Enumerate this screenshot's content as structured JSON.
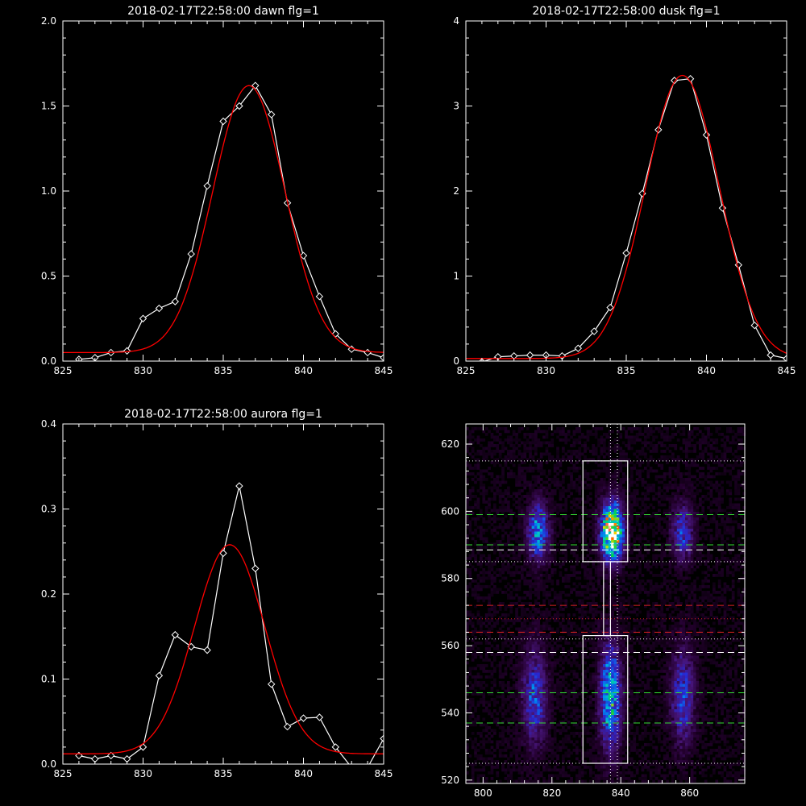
{
  "chart_data": [
    {
      "id": "dawn",
      "type": "line",
      "title": "2018-02-17T22:58:00 dawn flg=1",
      "xlim": [
        825,
        845
      ],
      "ylim": [
        0,
        2.0
      ],
      "xticks": [
        825,
        830,
        835,
        840,
        845
      ],
      "xtick_labels": [
        "825",
        "830",
        "835",
        "840",
        "845"
      ],
      "yticks": [
        0,
        0.5,
        1.0,
        1.5,
        2.0
      ],
      "ytick_labels": [
        "0.0",
        "0.5",
        "1.0",
        "1.5",
        "2.0"
      ],
      "series": [
        {
          "color": "#ffffff",
          "marker": "diamond",
          "x": [
            826,
            827,
            828,
            829,
            830,
            831,
            832,
            833,
            834,
            835,
            836,
            837,
            838,
            839,
            840,
            841,
            842,
            843,
            844,
            845
          ],
          "y": [
            0.01,
            0.02,
            0.05,
            0.06,
            0.25,
            0.31,
            0.35,
            0.63,
            1.03,
            1.41,
            1.5,
            1.62,
            1.45,
            0.93,
            0.62,
            0.38,
            0.16,
            0.07,
            0.05,
            0.02
          ]
        },
        {
          "color": "#ff0000",
          "fit": "gaussian",
          "amplitude": 1.57,
          "center": 836.6,
          "sigma": 2.25,
          "offset": 0.05
        }
      ]
    },
    {
      "id": "dusk",
      "type": "line",
      "title": "2018-02-17T22:58:00 dusk flg=1",
      "xlim": [
        825,
        845
      ],
      "ylim": [
        0,
        4
      ],
      "xticks": [
        825,
        830,
        835,
        840,
        845
      ],
      "xtick_labels": [
        "825",
        "830",
        "835",
        "840",
        "845"
      ],
      "yticks": [
        0,
        1,
        2,
        3,
        4
      ],
      "ytick_labels": [
        "0",
        "1",
        "2",
        "3",
        "4"
      ],
      "series": [
        {
          "color": "#ffffff",
          "marker": "diamond",
          "x": [
            826,
            827,
            828,
            829,
            830,
            831,
            832,
            833,
            834,
            835,
            836,
            837,
            838,
            839,
            840,
            841,
            842,
            843,
            844,
            845
          ],
          "y": [
            -0.01,
            0.05,
            0.06,
            0.07,
            0.07,
            0.06,
            0.15,
            0.35,
            0.63,
            1.27,
            1.97,
            2.72,
            3.3,
            3.32,
            2.66,
            1.8,
            1.13,
            0.42,
            0.07,
            0.03
          ]
        },
        {
          "color": "#ff0000",
          "fit": "gaussian",
          "amplitude": 3.33,
          "center": 838.5,
          "sigma": 2.3,
          "offset": 0.03
        }
      ]
    },
    {
      "id": "aurora",
      "type": "line",
      "title": "2018-02-17T22:58:00 aurora flg=1",
      "xlim": [
        825,
        845
      ],
      "ylim": [
        0,
        0.4
      ],
      "xticks": [
        825,
        830,
        835,
        840,
        845
      ],
      "xtick_labels": [
        "825",
        "830",
        "835",
        "840",
        "845"
      ],
      "yticks": [
        0,
        0.1,
        0.2,
        0.3,
        0.4
      ],
      "ytick_labels": [
        "0.0",
        "0.1",
        "0.2",
        "0.3",
        "0.4"
      ],
      "series": [
        {
          "color": "#ffffff",
          "marker": "diamond",
          "x": [
            826,
            827,
            828,
            829,
            830,
            831,
            832,
            833,
            834,
            835,
            836,
            837,
            838,
            839,
            840,
            841,
            842,
            843,
            844,
            845
          ],
          "y": [
            0.01,
            0.006,
            0.01,
            0.006,
            0.02,
            0.104,
            0.152,
            0.138,
            0.134,
            0.248,
            0.327,
            0.23,
            0.094,
            0.044,
            0.054,
            0.055,
            0.02,
            -0.004,
            -0.004,
            0.03
          ]
        },
        {
          "color": "#ff0000",
          "fit": "gaussian",
          "amplitude": 0.246,
          "center": 835.4,
          "sigma": 2.2,
          "offset": 0.012
        }
      ]
    },
    {
      "id": "image",
      "type": "heatmap",
      "xlim": [
        795,
        876
      ],
      "ylim": [
        519,
        626
      ],
      "xticks": [
        800,
        820,
        840,
        860
      ],
      "xtick_labels": [
        "800",
        "820",
        "840",
        "860"
      ],
      "yticks": [
        520,
        540,
        560,
        580,
        600,
        620
      ],
      "ytick_labels": [
        "520",
        "540",
        "560",
        "580",
        "600",
        "620"
      ],
      "blobs": [
        {
          "x": 816,
          "y": 594,
          "sx": 2.2,
          "sy": 6,
          "amp": 0.5
        },
        {
          "x": 837.5,
          "y": 594,
          "sx": 2.2,
          "sy": 6,
          "amp": 1.0
        },
        {
          "x": 858,
          "y": 594,
          "sx": 2.2,
          "sy": 6,
          "amp": 0.38
        },
        {
          "x": 815,
          "y": 545,
          "sx": 2.5,
          "sy": 10,
          "amp": 0.4
        },
        {
          "x": 837,
          "y": 545,
          "sx": 2.2,
          "sy": 11,
          "amp": 0.6
        },
        {
          "x": 858,
          "y": 545,
          "sx": 2.5,
          "sy": 10,
          "amp": 0.38
        }
      ],
      "boxes": [
        {
          "x0": 829,
          "x1": 842,
          "y0": 585,
          "y1": 615
        },
        {
          "x0": 835,
          "x1": 837,
          "y0": 563,
          "y1": 585
        },
        {
          "x0": 829,
          "x1": 842,
          "y0": 525,
          "y1": 563
        }
      ],
      "vlines": [
        {
          "x": 837,
          "color": "#ffffff",
          "style": "dotted"
        },
        {
          "x": 839,
          "color": "#ffffff",
          "style": "dotted"
        }
      ],
      "hlines": [
        {
          "y": 615,
          "color": "#ffffff",
          "style": "dotted"
        },
        {
          "y": 599,
          "color": "#33dd33",
          "style": "dashed"
        },
        {
          "y": 590,
          "color": "#33dd33",
          "style": "dashed"
        },
        {
          "y": 588.5,
          "color": "#ffffff",
          "style": "dashed"
        },
        {
          "y": 585,
          "color": "#ffffff",
          "style": "dotted"
        },
        {
          "y": 572,
          "color": "#dd2222",
          "style": "dashed"
        },
        {
          "y": 568,
          "color": "#dd2222",
          "style": "dotted"
        },
        {
          "y": 564,
          "color": "#dd2222",
          "style": "dashed"
        },
        {
          "y": 562,
          "color": "#ffffff",
          "style": "dotted"
        },
        {
          "y": 558,
          "color": "#ffffff",
          "style": "dashed"
        },
        {
          "y": 546,
          "color": "#33dd33",
          "style": "dashed"
        },
        {
          "y": 537,
          "color": "#33dd33",
          "style": "dashed"
        },
        {
          "y": 525,
          "color": "#ffffff",
          "style": "dotted"
        }
      ]
    }
  ]
}
